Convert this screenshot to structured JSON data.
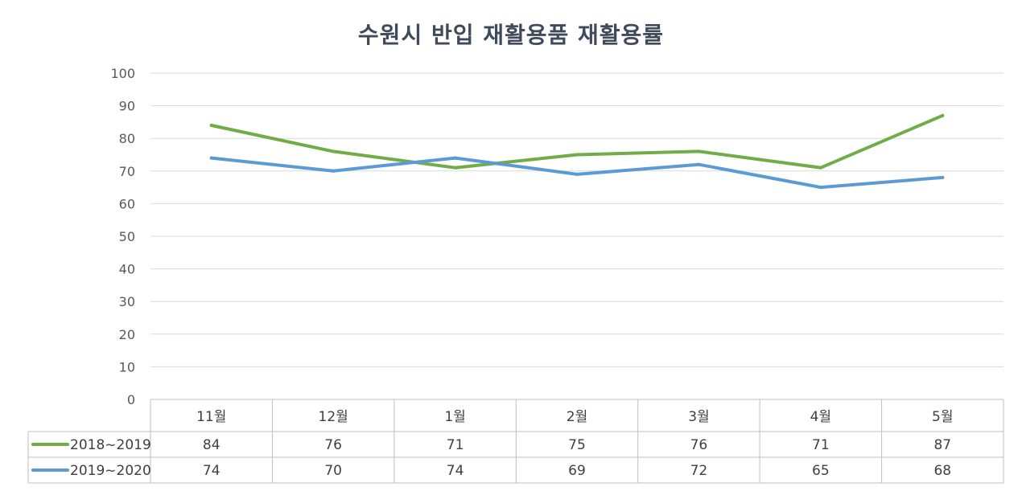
{
  "chart_data": {
    "type": "line",
    "title": "수원시 반입 재활용품 재활용률",
    "categories": [
      "11월",
      "12월",
      "1월",
      "2월",
      "3월",
      "4월",
      "5월"
    ],
    "series": [
      {
        "name": "2018~2019",
        "values": [
          84,
          76,
          71,
          75,
          76,
          71,
          87
        ],
        "color": "#70ad47"
      },
      {
        "name": "2019~2020",
        "values": [
          74,
          70,
          74,
          69,
          72,
          65,
          68
        ],
        "color": "#5b9bd5"
      }
    ],
    "yticks": [
      "0",
      "10",
      "20",
      "30",
      "40",
      "50",
      "60",
      "70",
      "80",
      "90",
      "100"
    ],
    "ylim": [
      0,
      100
    ],
    "grid": true,
    "data_table": true,
    "legend": "data-table-left"
  }
}
